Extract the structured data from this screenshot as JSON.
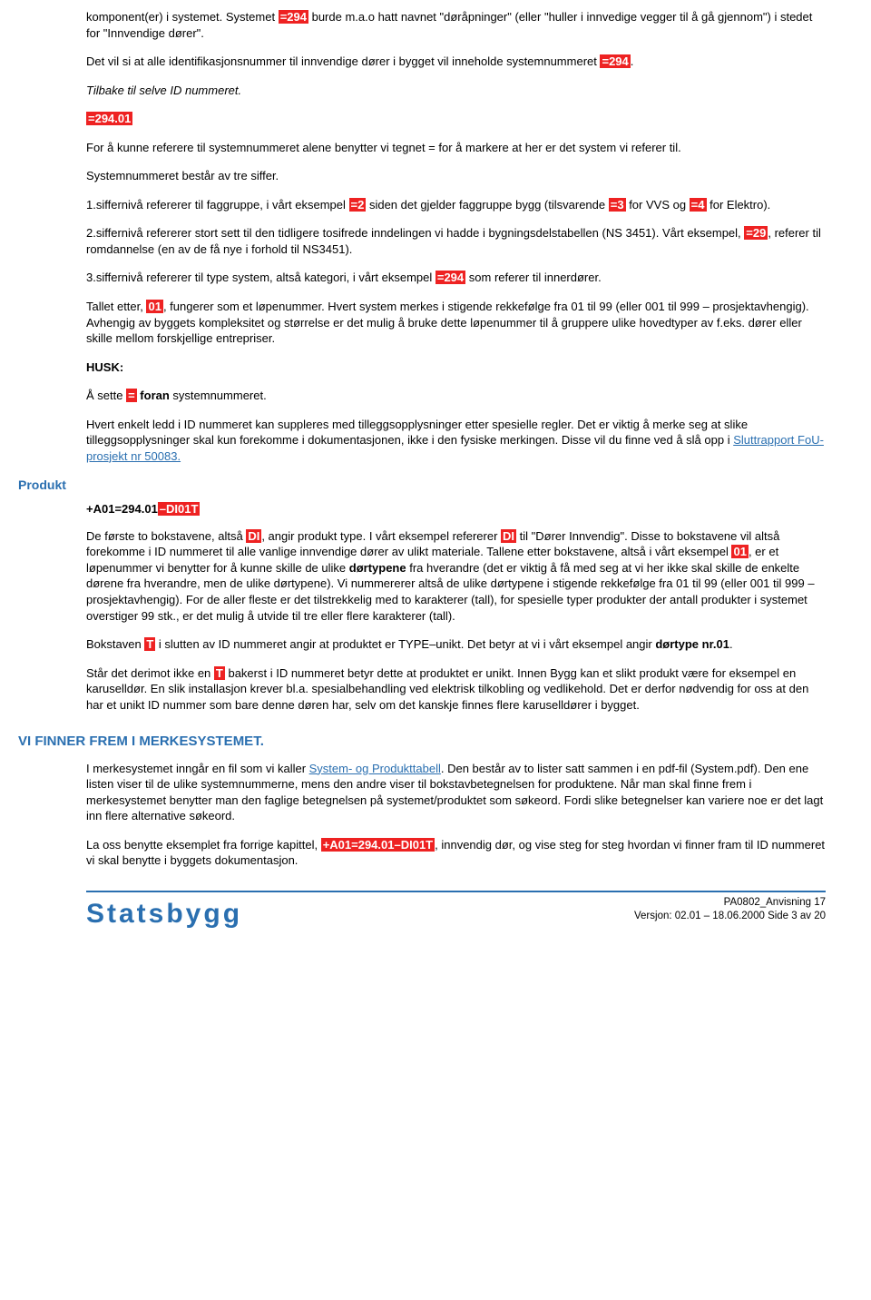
{
  "para1_a": "komponent(er) i systemet. Systemet ",
  "para1_hl": "=294",
  "para1_b": " burde m.a.o hatt navnet \"døråpninger\" (eller \"huller i innvedige vegger til å gå gjennom\") i stedet for \"Innvendige dører\".",
  "para2_a": "Det vil si at alle identifikasjonsnummer til innvendige dører i bygget vil inneholde systemnummeret ",
  "para2_hl": "=294",
  "para2_b": ".",
  "para3": "Tilbake til selve ID nummeret.",
  "para4_hl": "=294.01",
  "para5": "For å kunne referere til systemnummeret alene benytter vi tegnet = for å markere at her er det system vi referer til.",
  "para6": "Systemnummeret består av tre siffer.",
  "para7_a": "1.siffernivå refererer til faggruppe, i vårt eksempel ",
  "para7_hl1": "=2",
  "para7_b": " siden det gjelder faggruppe bygg (tilsvarende ",
  "para7_hl2": "=3",
  "para7_c": " for VVS og ",
  "para7_hl3": "=4",
  "para7_d": " for Elektro).",
  "para8_a": "2.siffernivå refererer stort sett til den tidligere tosifrede inndelingen vi hadde i bygningsdelstabellen (NS 3451). Vårt eksempel, ",
  "para8_hl": "=29",
  "para8_b": ", referer til romdannelse (en av de få nye i forhold til NS3451).",
  "para9_a": "3.siffernivå refererer til type system, altså kategori, i vårt eksempel ",
  "para9_hl": "=294",
  "para9_b": " som referer til innerdører.",
  "para10_a": "Tallet etter, ",
  "para10_hl": "01",
  "para10_b": ", fungerer som et løpenummer.  Hvert system merkes i stigende rekkefølge fra 01 til 99 (eller 001 til 999 – prosjektavhengig). Avhengig av byggets kompleksitet og størrelse er det mulig å bruke dette løpenummer til å gruppere ulike hovedtyper av f.eks. dører eller skille mellom forskjellige entrepriser.",
  "husk": "HUSK:",
  "para11_a": "Å sette ",
  "para11_hl": "=",
  "para11_b": " foran systemnummeret.",
  "para11_bold": "foran",
  "para12_a": "Hvert enkelt ledd i ID nummeret kan suppleres med tilleggsopplysninger etter spesielle regler. Det er viktig å merke seg at slike tilleggsopplysninger skal kun forekomme i dokumentasjonen, ikke i den fysiske merkingen. Disse vil du finne ved å slå opp i ",
  "para12_link": " Sluttrapport FoU-prosjekt nr 50083.",
  "produkt_label": "Produkt",
  "product_code_a": "+A01=294.01",
  "product_code_b": "–DI01T",
  "para13_a": "De første to bokstavene, altså ",
  "para13_hl1": "DI",
  "para13_b": ", angir produkt type.  I vårt eksempel refererer ",
  "para13_hl2": "DI",
  "para13_c": " til \"Dører Innvendig\".  Disse to bokstavene vil altså forekomme i ID nummeret til alle vanlige innvendige dører av ulikt materiale. Tallene etter bokstavene, altså i vårt eksempel ",
  "para13_hl3": "01",
  "para13_d": ", er et løpenummer vi benytter for å kunne skille de ulike ",
  "para13_bold1": "dørtypene",
  "para13_e": " fra hverandre (det er viktig å få med seg at vi her ikke skal skille de enkelte dørene fra hverandre, men de ulike dørtypene).  Vi nummererer altså de ulike dørtypene i stigende rekkefølge fra 01 til 99 (eller 001 til 999 – prosjektavhengig).  For de aller fleste er det tilstrekkelig med to karakterer (tall), for spesielle typer produkter der antall produkter i systemet overstiger 99 stk., er det mulig å utvide til tre eller flere karakterer (tall).",
  "para14_a": "Bokstaven ",
  "para14_hl": "T",
  "para14_b": " i slutten av ID nummeret angir at produktet er TYPE–unikt.  Det betyr at vi i vårt eksempel angir ",
  "para14_bold": "dørtype nr.01",
  "para14_c": ".",
  "para15_a": "Står det derimot ikke en ",
  "para15_hl": "T",
  "para15_b": " bakerst i ID nummeret betyr dette at produktet er unikt.  Innen Bygg kan et slikt produkt være for eksempel en karuselldør. En slik installasjon krever bl.a. spesialbehandling ved elektrisk tilkobling og vedlikehold. Det er derfor nødvendig for oss at den har et unikt ID nummer som bare denne døren har, selv om det kanskje finnes flere karuselldører i bygget.",
  "heading2": "VI FINNER FREM I MERKESYSTEMET.",
  "para16_a": "I merkesystemet  inngår en fil som vi kaller ",
  "para16_link": "System- og Produkttabell",
  "para16_b": ". Den består av to lister satt sammen i en pdf-fil (System.pdf).  Den ene listen viser til de ulike systemnummerne, mens den andre viser til bokstavbetegnelsen for produktene.  Når man skal finne frem i merkesystemet benytter man den faglige betegnelsen på systemet/produktet som søkeord. Fordi slike betegnelser kan variere noe er det lagt inn flere alternative søkeord.",
  "para17_a": "La oss benytte eksemplet fra forrige kapittel, ",
  "para17_hl": "+A01=294.01–DI01T",
  "para17_b": ", innvendig dør, og vise steg for steg hvordan vi finner fram til ID nummeret vi skal benytte i byggets dokumentasjon.",
  "footer_brand": "Statsbygg",
  "footer_doc": "PA0802_Anvisning 17",
  "footer_version": "Versjon: 02.01 – 18.06.2000 Side 3 av 20"
}
